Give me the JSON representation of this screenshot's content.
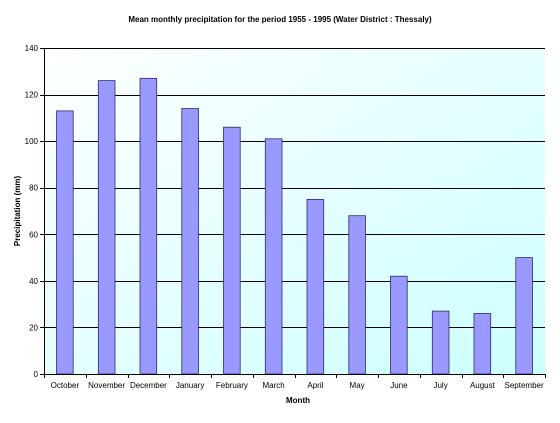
{
  "chart_data": {
    "type": "bar",
    "title": "Mean monthly precipitation for the period 1955 - 1995 (Water District : Thessaly)",
    "xlabel": "Month",
    "ylabel": "Precipitation (mm)",
    "categories": [
      "October",
      "November",
      "December",
      "January",
      "February",
      "March",
      "April",
      "May",
      "June",
      "July",
      "August",
      "September"
    ],
    "values": [
      113,
      126,
      127,
      114,
      106,
      101,
      75,
      68,
      42,
      27,
      26,
      50
    ],
    "yticks": [
      "0",
      "20",
      "40",
      "60",
      "80",
      "100",
      "120",
      "140"
    ],
    "ylim": [
      0,
      140
    ],
    "grid": true,
    "legend": "none",
    "bar_color": "#9999ff",
    "plot_background_from": "#ffffff",
    "plot_background_to": "#ccffff"
  }
}
